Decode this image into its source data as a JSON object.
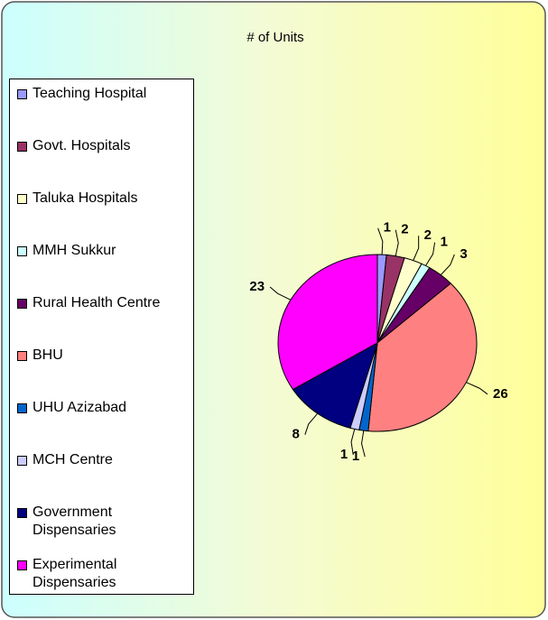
{
  "chart_data": {
    "type": "pie",
    "title": "# of Units",
    "categories": [
      "Teaching Hospital",
      "Govt. Hospitals",
      "Taluka Hospitals",
      "MMH Sukkur",
      "Rural Health Centre",
      "BHU",
      "UHU Azizabad",
      "MCH Centre",
      "Government Dispensaries",
      "Experimental Dispensaries"
    ],
    "values": [
      1,
      2,
      2,
      1,
      3,
      26,
      1,
      1,
      8,
      23
    ],
    "colors": [
      "#9999ff",
      "#993366",
      "#ffffcc",
      "#ccffff",
      "#660066",
      "#ff8080",
      "#0066cc",
      "#ccccff",
      "#000080",
      "#ff00ff"
    ],
    "legend": "left"
  }
}
